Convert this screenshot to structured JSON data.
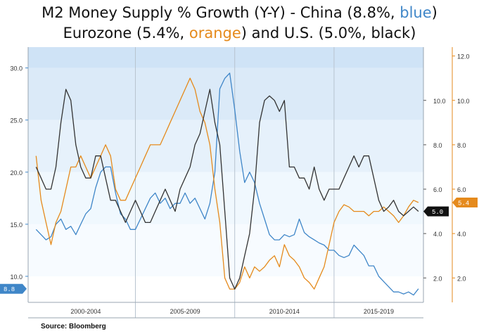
{
  "title": {
    "line1_pre": "M2 Money Supply % Growth (Y-Y) - China (8.8%, ",
    "line1_blue": "blue",
    "line1_post": ")",
    "line2_pre": "Eurozone (5.4%, ",
    "line2_orange": "orange",
    "line2_mid": ") and U.S. (5.0%, black)"
  },
  "source": "Source: Bloomberg",
  "colors": {
    "china": "#3f86c8",
    "eurozone": "#e58a1c",
    "us": "#333333"
  },
  "chart_data": {
    "type": "line",
    "x": [
      2000,
      2000.25,
      2000.5,
      2000.75,
      2001,
      2001.25,
      2001.5,
      2001.75,
      2002,
      2002.25,
      2002.5,
      2002.75,
      2003,
      2003.25,
      2003.5,
      2003.75,
      2004,
      2004.25,
      2004.5,
      2004.75,
      2005,
      2005.25,
      2005.5,
      2005.75,
      2006,
      2006.25,
      2006.5,
      2006.75,
      2007,
      2007.25,
      2007.5,
      2007.75,
      2008,
      2008.25,
      2008.5,
      2008.75,
      2009,
      2009.25,
      2009.5,
      2009.75,
      2010,
      2010.25,
      2010.5,
      2010.75,
      2011,
      2011.25,
      2011.5,
      2011.75,
      2012,
      2012.25,
      2012.5,
      2012.75,
      2013,
      2013.25,
      2013.5,
      2013.75,
      2014,
      2014.25,
      2014.5,
      2014.75,
      2015,
      2015.25,
      2015.5,
      2015.75,
      2016,
      2016.25,
      2016.5,
      2016.75,
      2017,
      2017.25,
      2017.5,
      2017.75,
      2018,
      2018.25,
      2018.5,
      2018.75,
      2019,
      2019.25
    ],
    "x_groups": [
      "2000-2004",
      "2005-2009",
      "2010-2014",
      "2015-2019"
    ],
    "x_group_bounds": [
      2000,
      2005,
      2010,
      2015,
      2019.5
    ],
    "xlim": [
      1999.6,
      2019.5
    ],
    "y_left_ticks": [
      "10.0",
      "15.0",
      "20.0",
      "25.0",
      "30.0"
    ],
    "y_left_lim": [
      7.5,
      32
    ],
    "y_right_ticks": [
      "2.0",
      "4.0",
      "6.0",
      "8.0",
      "10.0",
      "12.0"
    ],
    "y_right_lim": [
      0.9,
      12.4
    ],
    "y_right_extra_ticks": [
      "2.0",
      "4.0",
      "6.0",
      "8.0",
      "10.0"
    ],
    "series": [
      {
        "name": "China (8.8%, blue)",
        "axis": "left",
        "color": "#3f86c8",
        "last_label": "8.8",
        "values": [
          14.5,
          14,
          13.5,
          13.8,
          15,
          15.5,
          14.5,
          14.8,
          14,
          15,
          16,
          16.5,
          18.5,
          20,
          20.5,
          20.5,
          18,
          16,
          15.5,
          14.5,
          14.5,
          15.5,
          16.5,
          17.5,
          18,
          17,
          17.5,
          16.5,
          17,
          17,
          18,
          17,
          17.5,
          16.5,
          15.5,
          17,
          20,
          28,
          29,
          29.5,
          26,
          22,
          19,
          20,
          19,
          17,
          15.5,
          14,
          13.5,
          13.5,
          14,
          13.8,
          14,
          15.5,
          14.2,
          13.8,
          13.5,
          13.2,
          13,
          12.5,
          12.5,
          12,
          11.8,
          12,
          13,
          12.5,
          12,
          11,
          11,
          10,
          9.5,
          9,
          8.5,
          8.5,
          8.3,
          8.5,
          8.2,
          8.8
        ]
      },
      {
        "name": "Eurozone (5.4%, orange)",
        "axis": "right",
        "color": "#e58a1c",
        "last_label": "5.4",
        "values": [
          7.5,
          5.5,
          4.5,
          3.5,
          4.5,
          5,
          6,
          7,
          7,
          7.5,
          7,
          6.5,
          7,
          7.5,
          8,
          7.5,
          6,
          5.5,
          5.5,
          6,
          6.5,
          7,
          7.5,
          8,
          8,
          8,
          8.5,
          9,
          9.5,
          10,
          10.5,
          11,
          10.5,
          9.5,
          9,
          8,
          6,
          4.5,
          2,
          1.5,
          1.5,
          1.8,
          2.5,
          2,
          2.5,
          2.3,
          2.5,
          2.8,
          3,
          2.5,
          3.5,
          3,
          2.8,
          2.5,
          2,
          1.8,
          1.5,
          2,
          2.5,
          3.5,
          4.5,
          5,
          5.3,
          5.2,
          5,
          5,
          5,
          4.8,
          5,
          5,
          5.2,
          5,
          4.8,
          4.5,
          4.8,
          5.2,
          5.5,
          5.4
        ]
      },
      {
        "name": "U.S. (5.0%, black)",
        "axis": "right",
        "color": "#333333",
        "last_label": "5.0",
        "values": [
          7,
          6.5,
          6,
          6,
          7,
          9,
          10.5,
          10,
          8,
          7,
          6.5,
          6.5,
          7.5,
          7.5,
          6.5,
          5.5,
          5.5,
          5,
          4.5,
          5,
          5.5,
          5,
          4.5,
          4.5,
          5,
          5.5,
          6,
          5.5,
          5,
          6,
          6.5,
          7,
          8,
          8.5,
          9.5,
          10.5,
          9,
          8,
          5,
          2,
          1.5,
          2,
          3,
          4,
          6,
          9,
          10,
          10.2,
          10,
          9.5,
          10,
          7,
          7,
          6.5,
          6.5,
          6,
          7,
          6,
          5.5,
          6,
          6,
          6,
          6.5,
          7,
          7.5,
          7,
          7.5,
          7.5,
          6.5,
          5.5,
          5,
          5.2,
          5.5,
          5,
          4.8,
          5,
          5.2,
          5
        ]
      }
    ]
  }
}
